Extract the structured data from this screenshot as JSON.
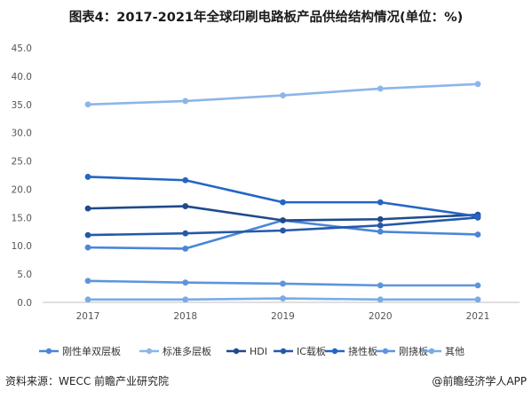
{
  "title": "图表4：2017-2021年全球印刷电路板产品供给结构情况(单位：%)",
  "source": "资料来源：WECC 前瞻产业研究院",
  "brand": "@前瞻经济学人APP",
  "chart_data": {
    "type": "line",
    "title": "图表4：2017-2021年全球印刷电路板产品供给结构情况(单位：%)",
    "x": [
      "2017",
      "2018",
      "2019",
      "2020",
      "2021"
    ],
    "ylim": [
      0,
      45
    ],
    "yticks": [
      "0.0",
      "5.0",
      "10.0",
      "15.0",
      "20.0",
      "25.0",
      "30.0",
      "35.0",
      "40.0",
      "45.0"
    ],
    "grid": false,
    "legend_position": "bottom",
    "series": [
      {
        "name": "刚性单双层板",
        "color": "#4a86d8",
        "values": [
          9.7,
          9.5,
          14.5,
          12.5,
          12.0
        ]
      },
      {
        "name": "标准多层板",
        "color": "#8cb6ea",
        "values": [
          35.0,
          35.6,
          36.6,
          37.8,
          38.6
        ]
      },
      {
        "name": "HDI",
        "color": "#1f4a8c",
        "values": [
          16.6,
          17.0,
          14.5,
          14.7,
          15.5
        ]
      },
      {
        "name": "IC载板",
        "color": "#2559a8",
        "values": [
          11.9,
          12.2,
          12.7,
          13.6,
          15.0
        ]
      },
      {
        "name": "挠性板",
        "color": "#2366c4",
        "values": [
          22.2,
          21.6,
          17.7,
          17.7,
          15.2
        ]
      },
      {
        "name": "刚挠板",
        "color": "#5d95dc",
        "values": [
          3.8,
          3.5,
          3.3,
          3.0,
          3.0
        ]
      },
      {
        "name": "其他",
        "color": "#7aabe6",
        "values": [
          0.5,
          0.5,
          0.7,
          0.5,
          0.5
        ]
      }
    ]
  }
}
